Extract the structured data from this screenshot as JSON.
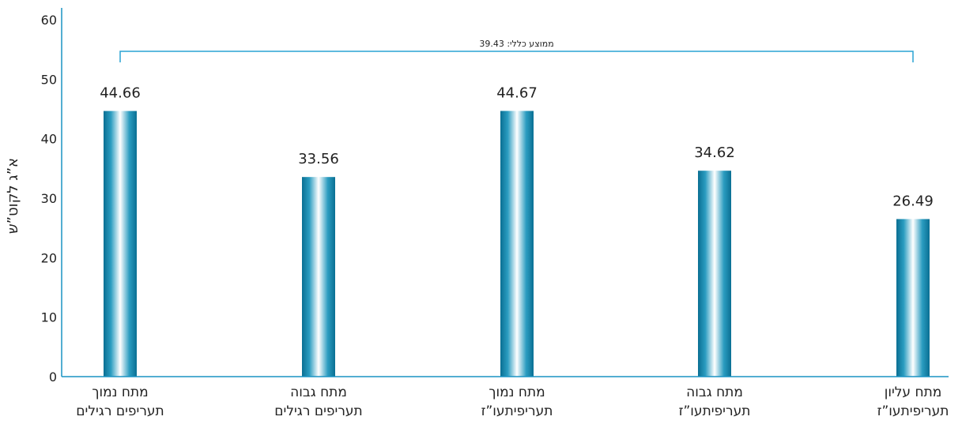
{
  "chart_data": {
    "type": "bar",
    "categories": [
      [
        "מתח נמוך",
        "תעריפים רגילים"
      ],
      [
        "מתח גבוה",
        "תעריפים רגילים"
      ],
      [
        "מתח נמוך",
        "תעריפיתעו”ז"
      ],
      [
        "מתח גבוה",
        "תעריפיתעו”ז"
      ],
      [
        "מתח עליון",
        "תעריפיתעו”ז"
      ]
    ],
    "values": [
      44.66,
      33.56,
      44.67,
      34.62,
      26.49
    ],
    "value_labels": [
      "44.66",
      "33.56",
      "44.67",
      "34.62",
      "26.49"
    ],
    "ylabel": "א”ג לקוט”ש",
    "ylim": [
      0,
      60
    ],
    "yticks": [
      0,
      10,
      20,
      30,
      40,
      50,
      60
    ],
    "average_annotation": "ממוצע כללי: 39.43",
    "grid": false,
    "colors": {
      "bar_dark": "#0a6f93",
      "bar_mid": "#2a9cc0",
      "bar_light": "#ffffff",
      "axis": "#1a93c4",
      "bracket": "#2aa4d4"
    }
  }
}
